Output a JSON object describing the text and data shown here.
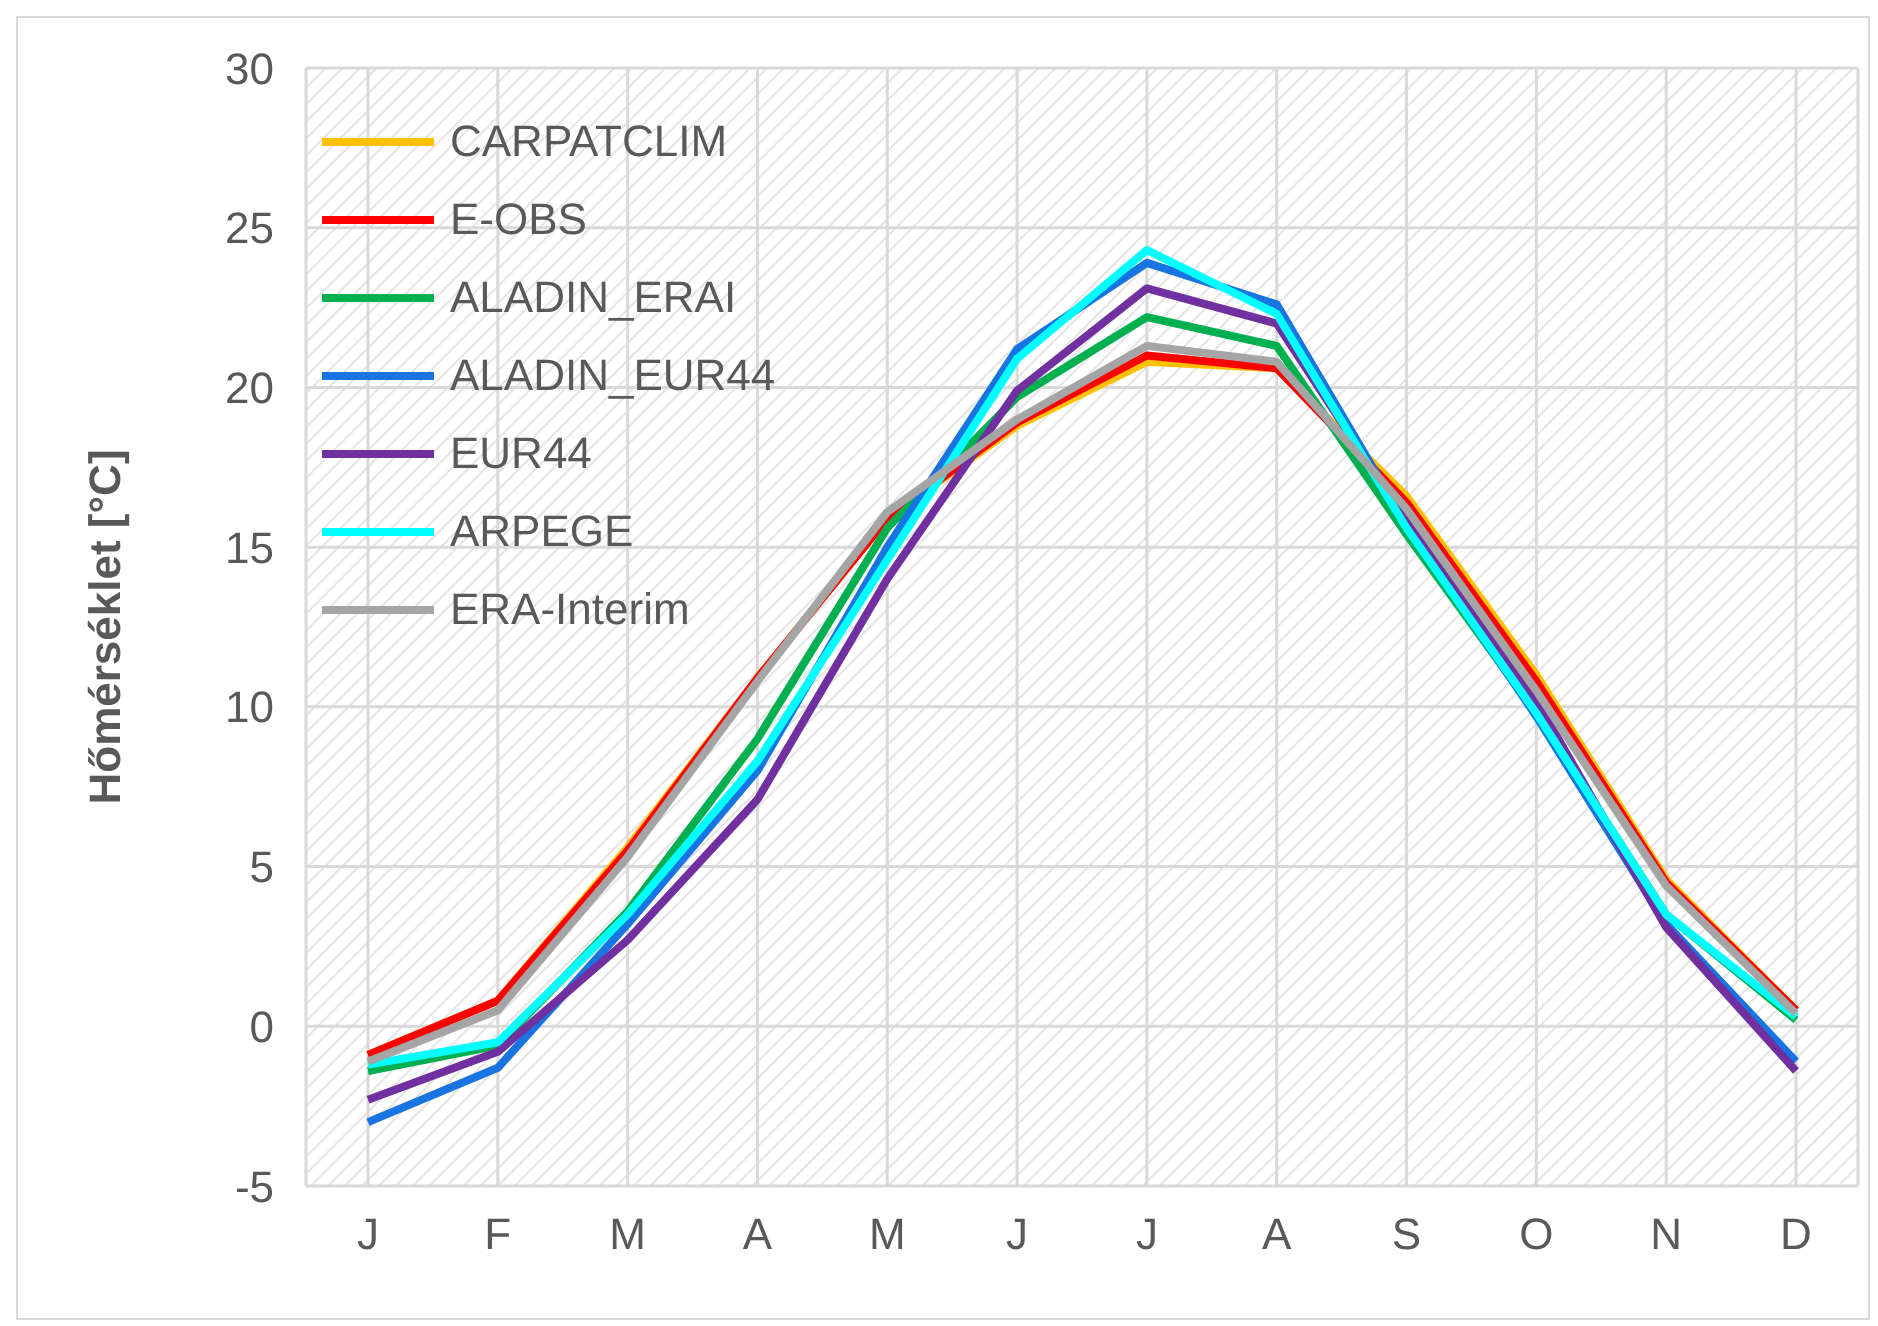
{
  "chart_data": {
    "type": "line",
    "ylabel": "Hőmérséklet [°C]",
    "categories": [
      "J",
      "F",
      "M",
      "A",
      "M",
      "J",
      "J",
      "A",
      "S",
      "O",
      "N",
      "D"
    ],
    "ylim": [
      -5,
      30
    ],
    "yticks": [
      -5,
      0,
      5,
      10,
      15,
      20,
      25,
      30
    ],
    "grid": true,
    "legend": "top left",
    "marker": "none",
    "line_style": "solid",
    "series": [
      {
        "name": "CARPATCLIM",
        "color": "#ffc000",
        "values": [
          -0.9,
          0.8,
          5.6,
          10.9,
          15.9,
          18.8,
          20.8,
          20.6,
          16.6,
          11.0,
          4.6,
          0.5
        ]
      },
      {
        "name": "E-OBS",
        "color": "#ff0000",
        "values": [
          -0.9,
          0.8,
          5.5,
          10.9,
          15.9,
          18.9,
          21.0,
          20.6,
          16.4,
          10.8,
          4.5,
          0.5
        ]
      },
      {
        "name": "ALADIN_ERAI",
        "color": "#00b050",
        "values": [
          -1.4,
          -0.6,
          3.6,
          9.0,
          15.6,
          19.7,
          22.2,
          21.3,
          15.4,
          9.8,
          3.5,
          0.2
        ]
      },
      {
        "name": "ALADIN_EUR44",
        "color": "#1874e0",
        "values": [
          -3.0,
          -1.3,
          3.2,
          8.0,
          15.0,
          21.2,
          23.9,
          22.6,
          15.7,
          9.7,
          3.2,
          -1.1
        ]
      },
      {
        "name": "EUR44",
        "color": "#7030a0",
        "values": [
          -2.3,
          -0.8,
          2.7,
          7.1,
          14.0,
          19.9,
          23.1,
          22.0,
          15.8,
          10.2,
          3.1,
          -1.4
        ]
      },
      {
        "name": "ARPEGE",
        "color": "#00ffff",
        "values": [
          -1.2,
          -0.5,
          3.5,
          8.3,
          14.6,
          20.9,
          24.3,
          22.3,
          15.6,
          9.8,
          3.5,
          0.3
        ]
      },
      {
        "name": "ERA-Interim",
        "color": "#a5a5a5",
        "values": [
          -1.1,
          0.5,
          5.3,
          10.8,
          16.1,
          19.0,
          21.3,
          20.8,
          16.2,
          10.5,
          4.4,
          0.4
        ]
      }
    ]
  }
}
